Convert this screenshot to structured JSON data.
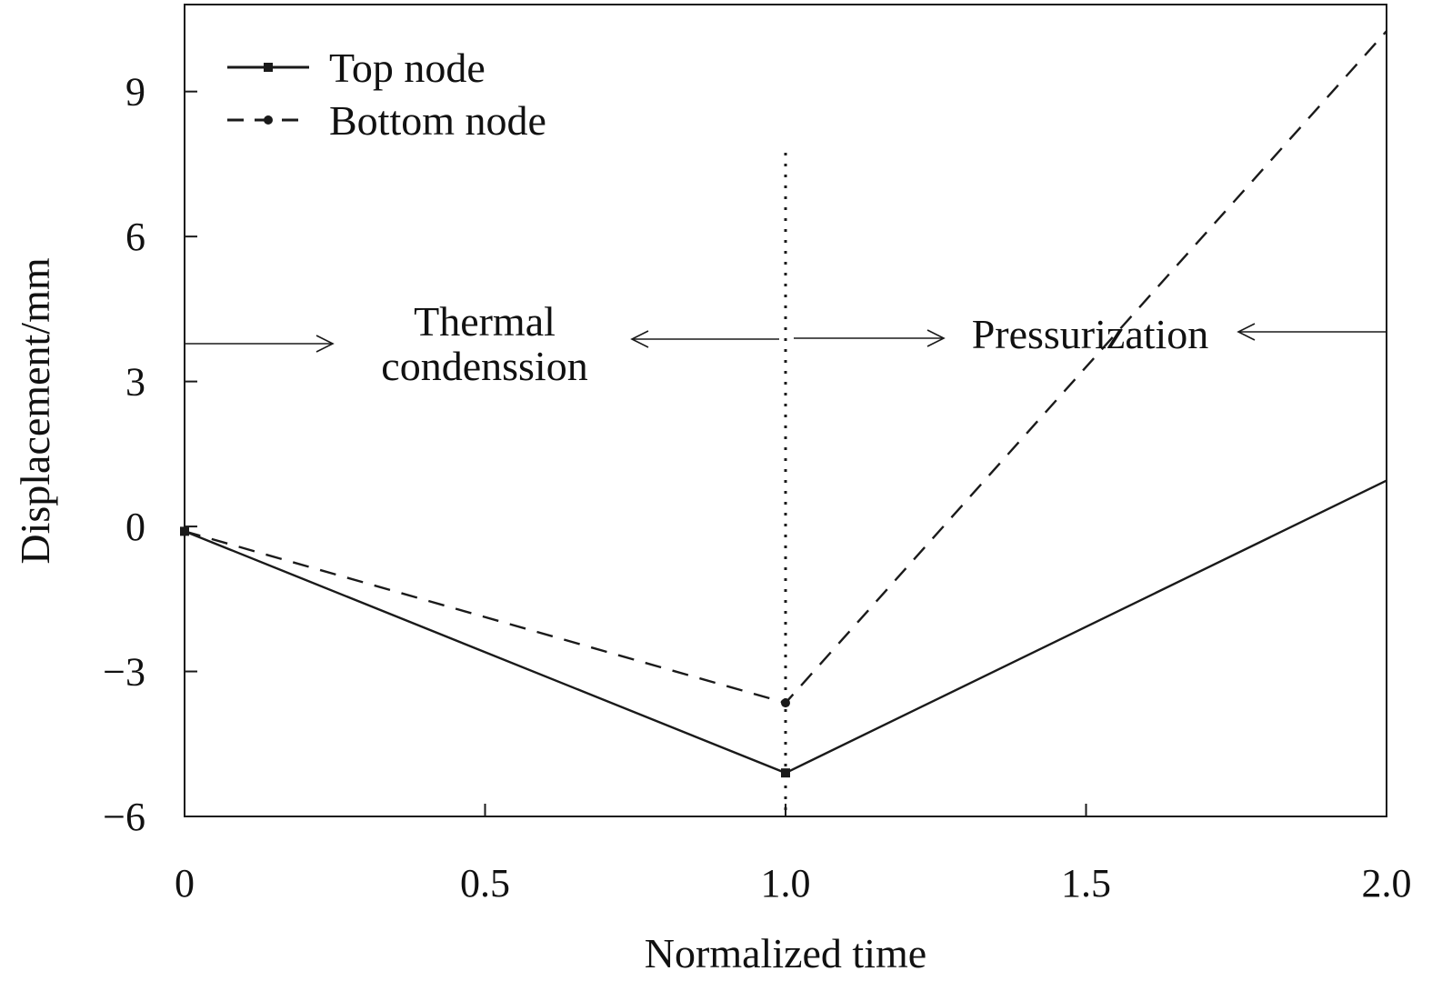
{
  "chart_data": {
    "type": "line",
    "title": "",
    "xlabel": "Normalized time",
    "ylabel": "Displacement/mm",
    "xlim": [
      0,
      2.0
    ],
    "ylim": [
      -6,
      10.8
    ],
    "xticks": [
      0,
      0.5,
      1.0,
      1.5,
      2.0
    ],
    "xtick_labels": [
      "0",
      "0.5",
      "1.0",
      "1.5",
      "2.0"
    ],
    "yticks": [
      -6,
      -3,
      0,
      3,
      6,
      9
    ],
    "ytick_labels": [
      "−6",
      "−3",
      "0",
      "3",
      "6",
      "9"
    ],
    "grid": false,
    "legend_position": "top-left",
    "series": [
      {
        "name": "Top node",
        "line_style": "solid",
        "marker": "square",
        "color": "#1a1a1a",
        "x": [
          0,
          1.0,
          2.0
        ],
        "y": [
          -0.1,
          -5.1,
          0.95
        ]
      },
      {
        "name": "Bottom node",
        "line_style": "dashed",
        "marker": "circle",
        "color": "#1a1a1a",
        "x": [
          0,
          1.0,
          2.0
        ],
        "y": [
          -0.1,
          -3.65,
          10.25
        ]
      }
    ],
    "vline": {
      "x": 1.0,
      "style": "dotted"
    },
    "annotations": [
      {
        "text_lines": [
          "Thermal",
          "condenssion"
        ],
        "x": 0.5,
        "y": 4.1
      },
      {
        "text_lines": [
          "Pressurization"
        ],
        "x": 1.5,
        "y": 4.0
      }
    ]
  }
}
